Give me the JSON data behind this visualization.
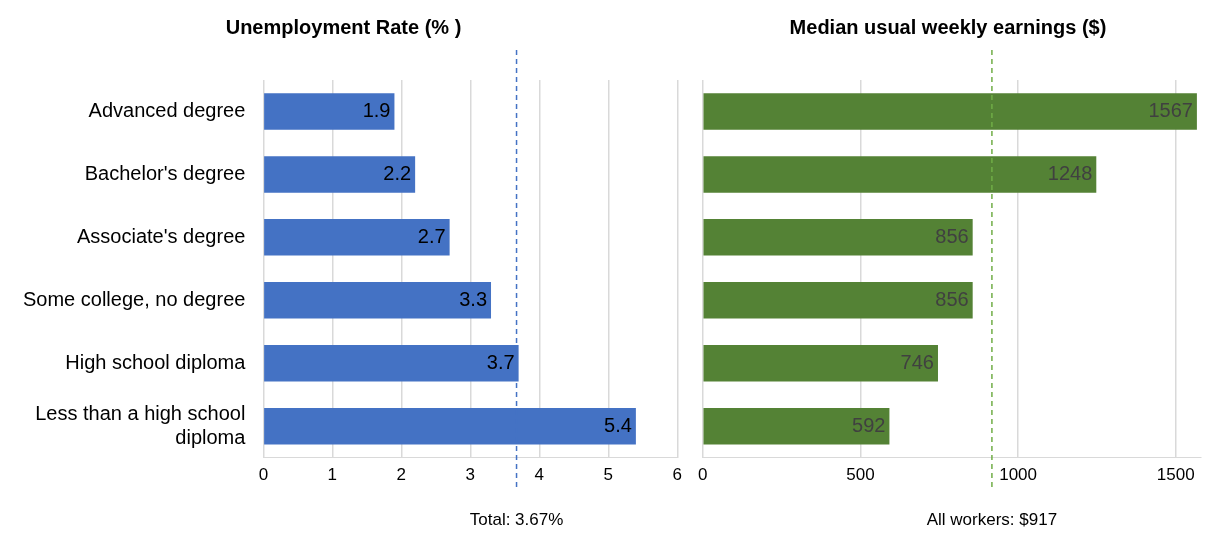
{
  "chart_data": [
    {
      "type": "bar",
      "orientation": "horizontal",
      "title": "Unemployment Rate (% )",
      "categories": [
        "Advanced degree",
        "Bachelor's degree",
        "Associate's degree",
        "Some college, no degree",
        "High school diploma",
        "Less than a high school diploma"
      ],
      "values": [
        1.9,
        2.2,
        2.7,
        3.3,
        3.7,
        5.4
      ],
      "color": "#4472c4",
      "xlim": [
        0,
        6
      ],
      "xticks": [
        0,
        1,
        2,
        3,
        4,
        5,
        6
      ],
      "grid": "x",
      "legend": false,
      "data_labels": true,
      "ref_lines": [
        {
          "axis": "x",
          "value": 3.67,
          "label": "Total: 3.67%",
          "color": "#4472c4",
          "line_style": "dashed"
        }
      ]
    },
    {
      "type": "bar",
      "orientation": "horizontal",
      "title": "Median usual weekly earnings ($)",
      "categories": [
        null,
        null,
        null,
        null,
        null,
        null
      ],
      "values": [
        1567,
        1248,
        856,
        856,
        746,
        592
      ],
      "color": "#548235",
      "xlim": [
        0,
        1580
      ],
      "xticks": [
        0,
        500,
        1000,
        1500
      ],
      "grid": "x",
      "legend": false,
      "data_labels": true,
      "tick_labels": "x",
      "ref_lines": [
        {
          "axis": "x",
          "value": 917,
          "label": "All workers: $917",
          "color": "#70ad47",
          "line_style": "dashed"
        }
      ]
    }
  ]
}
